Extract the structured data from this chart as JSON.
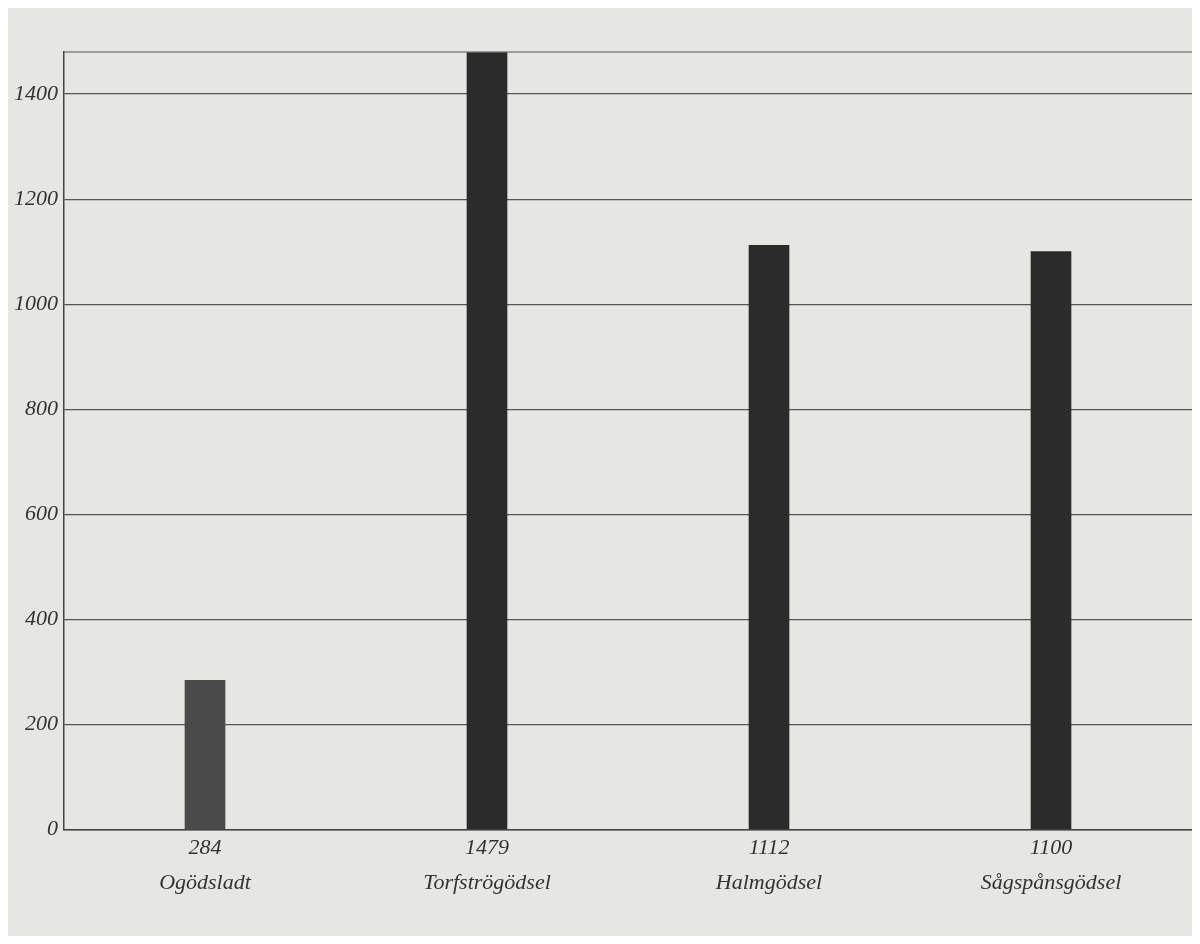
{
  "chart_data": {
    "type": "bar",
    "categories": [
      "Ogödsladt",
      "Torfströgödsel",
      "Halmgödsel",
      "Sågspånsgödsel"
    ],
    "values": [
      284,
      1479,
      1112,
      1100
    ],
    "colors": [
      "#4a4a4a",
      "#2b2b2b",
      "#2b2b2b",
      "#2b2b2b"
    ],
    "ylim": [
      0,
      1480
    ],
    "yticks": [
      0,
      200,
      400,
      600,
      800,
      1000,
      1200,
      1400
    ],
    "grid": "y",
    "data_labels": true
  }
}
